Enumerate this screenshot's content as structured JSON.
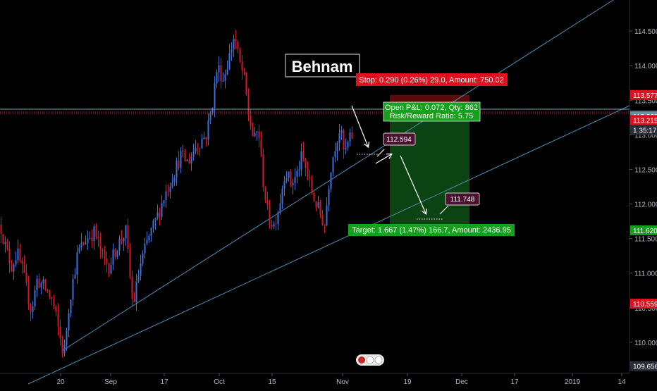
{
  "chart_data": {
    "type": "candlestick",
    "watermark": "Behnam",
    "colors": {
      "background": "#000000",
      "up": "#3f6fd6",
      "down": "#d11a2a",
      "trendline": "#4a90b8",
      "stop_fill": "#5c0a0a",
      "target_fill": "#0b4412",
      "stop_label": "#e0101e",
      "target_label": "#17a01e",
      "axis_text": "#b2b5be",
      "point_label": "#4a1230"
    },
    "x_axis": {
      "tick_labels": [
        "20",
        "Sep",
        "17",
        "Oct",
        "15",
        "Nov",
        "19",
        "Dec",
        "17",
        "2019",
        "14"
      ]
    },
    "y_axis": {
      "range": [
        109.55,
        114.95
      ],
      "tick_labels": [
        "114.500",
        "114.000",
        "113.500",
        "113.000",
        "112.500",
        "112.000",
        "111.500",
        "111.000",
        "110.500",
        "110.000"
      ],
      "tick_values": [
        114.5,
        114.0,
        113.5,
        113.0,
        112.5,
        112.0,
        111.5,
        111.0,
        110.5,
        110.0
      ],
      "price_tags": [
        {
          "text": "113.577",
          "value": 113.577,
          "color": "#e0101e"
        },
        {
          "text": "113.287",
          "value": 113.287,
          "color": "#2a2e39"
        },
        {
          "text": "113.268",
          "value": 113.268,
          "color": "#6d8fa6"
        },
        {
          "text": "113.215",
          "value": 113.215,
          "color": "#e0101e"
        },
        {
          "text": "1 35:17",
          "value": 113.07,
          "color": "#2a2e39"
        },
        {
          "text": "111.620",
          "value": 111.62,
          "color": "#17a01e"
        },
        {
          "text": "110.559",
          "value": 110.559,
          "color": "#e0101e"
        },
        {
          "text": "109.656",
          "value": 109.656,
          "color": "#2a2e39"
        }
      ]
    },
    "position": {
      "stop_text": "Stop: 0.290 (0.26%) 29.0, Amount: 750.02",
      "pnl_text": "Open P&L: 0.072, Qty: 862",
      "rr_text": "Risk/Reward Ratio: 5.75",
      "target_text": "Target: 1.667 (1.47%) 166.7, Amount: 2436.95",
      "stop_price": 113.577,
      "entry_price": 113.287,
      "target_price": 111.62
    },
    "annotations": [
      {
        "text": "112.594",
        "value": 112.594
      },
      {
        "text": "111.748",
        "value": 111.748
      }
    ]
  }
}
